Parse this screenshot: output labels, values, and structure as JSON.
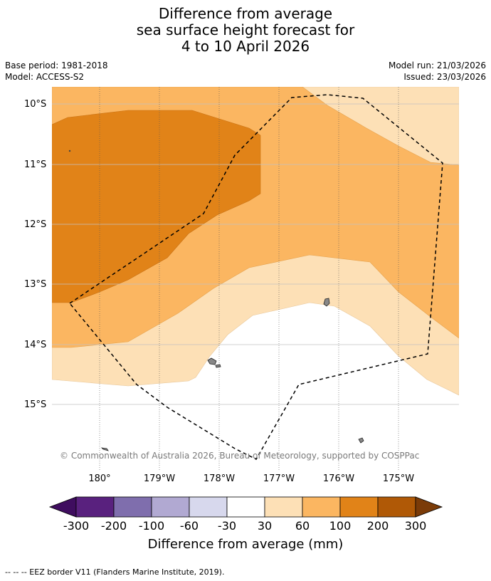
{
  "title": {
    "line1": "Difference from average",
    "line2": "sea surface height forecast for",
    "line3": "4 to 10 April 2026"
  },
  "meta": {
    "base_period": "Base period: 1981-2018",
    "model": "Model: ACCESS-S2",
    "model_run": "Model run: 21/03/2026",
    "issued": "Issued: 23/03/2026"
  },
  "map": {
    "lat_labels": [
      "10°S",
      "11°S",
      "12°S",
      "13°S",
      "14°S",
      "15°S"
    ],
    "lon_labels": [
      "180°",
      "179°W",
      "178°W",
      "177°W",
      "176°W",
      "175°W"
    ],
    "copyright": "© Commonwealth of Australia 2026, Bureau of Meteorology, supported by COSPPac"
  },
  "colorbar": {
    "labels": [
      "-300",
      "-200",
      "-100",
      "-60",
      "-30",
      "30",
      "60",
      "100",
      "200",
      "300"
    ],
    "colors": [
      "#3f0d5f",
      "#59217e",
      "#7f6ead",
      "#b1a9d2",
      "#d7d8ed",
      "#ffffff",
      "#fde0b6",
      "#fbb661",
      "#e18318",
      "#b05906",
      "#7b3b08"
    ],
    "title": "Difference from average (mm)"
  },
  "footnote": "--  --  -- EEZ border V11 (Flanders Marine Institute, 2019)."
}
